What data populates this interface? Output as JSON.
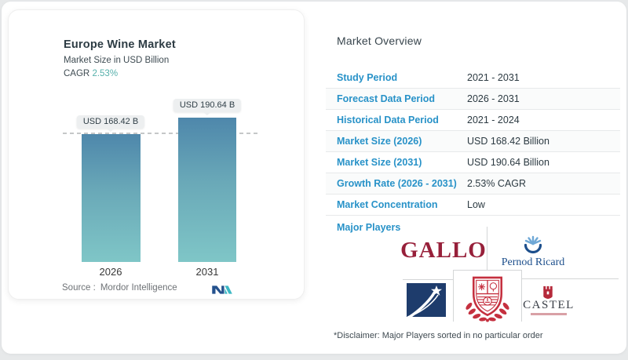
{
  "left_panel": {
    "title": "Europe Wine Market",
    "subtitle": "Market Size in USD Billion",
    "cagr_label": "CAGR",
    "cagr_value": "2.53%",
    "source_label": "Source :",
    "source_name": "Mordor Intelligence",
    "logo": "mordor-intelligence-logo"
  },
  "chart_data": {
    "type": "bar",
    "categories": [
      "2026",
      "2031"
    ],
    "values": [
      168.42,
      190.64
    ],
    "value_labels": [
      "USD 168.42 B",
      "USD 190.64 B"
    ],
    "title": "Europe Wine Market",
    "xlabel": "",
    "ylabel": "Market Size in USD Billion",
    "ylim": [
      0,
      200
    ],
    "grid": false,
    "reference_dashed_line_at": 168.42,
    "bar_gradient": [
      "#4e87ab",
      "#7fc6c7"
    ]
  },
  "overview": {
    "heading": "Market Overview",
    "rows": [
      {
        "label": "Study Period",
        "value": "2021 - 2031"
      },
      {
        "label": "Forecast Data Period",
        "value": "2026 - 2031"
      },
      {
        "label": "Historical Data Period",
        "value": "2021 - 2024"
      },
      {
        "label": "Market Size (2026)",
        "value": "USD 168.42 Billion"
      },
      {
        "label": "Market Size (2031)",
        "value": "USD 190.64 Billion"
      },
      {
        "label": "Growth Rate (2026 - 2031)",
        "value": "2.53% CAGR"
      },
      {
        "label": "Market Concentration",
        "value": "Low"
      }
    ],
    "major_players_label": "Major Players",
    "players": [
      {
        "name": "GALLO",
        "icon": "gallo-wordmark"
      },
      {
        "name": "Pernod Ricard",
        "icon": "pernod-ricard-rays-logo"
      },
      {
        "name": "",
        "icon": "navy-star-swoosh-logo"
      },
      {
        "name": "",
        "icon": "red-crest-logo"
      },
      {
        "name": "CASTEL",
        "icon": "castel-crest-logo"
      }
    ],
    "disclaimer": "*Disclaimer: Major Players sorted in no particular order"
  },
  "colors": {
    "accent_blue": "#2892c8",
    "teal": "#56b0ab",
    "bar_top": "#4e87ab",
    "bar_bottom": "#7fc6c7",
    "gallo_red": "#97203a",
    "pernod_blue": "#1d4f8c",
    "navy": "#1e3c6c",
    "crest_red": "#c5303f"
  }
}
